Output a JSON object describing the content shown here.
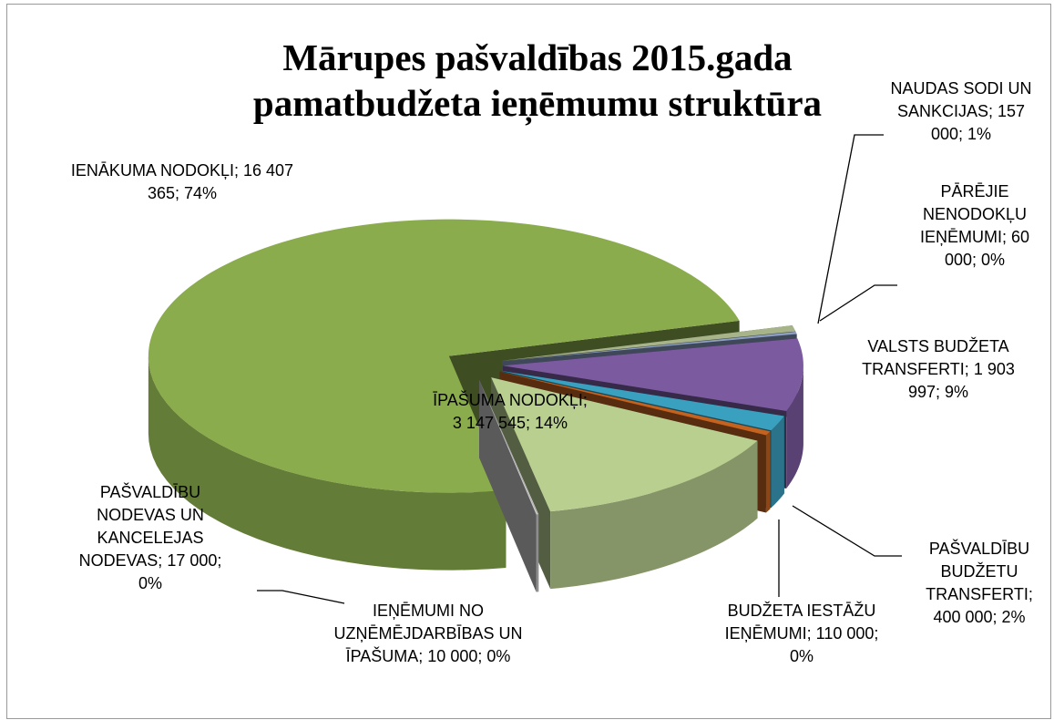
{
  "chart_data": {
    "type": "pie3d",
    "title": "Mārupes pašvaldības 2015.gada pamatbudžeta ieņēmumu struktūra",
    "label_separator": ";",
    "categories": [
      "IENĀKUMA NODOKĻI",
      "PAŠVALDĪBU NODEVAS UN KANCELEJAS NODEVAS",
      "IEŅĒMUMI NO UZŅĒMĒJDARBĪBAS UN ĪPAŠUMA",
      "ĪPAŠUMA NODOKĻI",
      "BUDŽETA IESTĀŽU IEŅĒMUMI",
      "PAŠVALDĪBU BUDŽETU TRANSFERTI",
      "VALSTS BUDŽETA TRANSFERTI",
      "PĀRĒJIE NENODOKĻU IEŅĒMUMI",
      "NAUDAS SODI UN SANKCIJAS"
    ],
    "values": [
      16407365,
      17000,
      10000,
      3147545,
      110000,
      400000,
      1903997,
      60000,
      157000
    ],
    "value_labels": [
      "16 407 365",
      "17 000",
      "10 000",
      "3 147 545",
      "110 000",
      "400 000",
      "1 903 997",
      "60 000",
      "157 000"
    ],
    "percentages": [
      74,
      0,
      0,
      14,
      0,
      2,
      9,
      0,
      1
    ],
    "percentage_labels": [
      "74%",
      "0%",
      "0%",
      "14%",
      "0%",
      "2%",
      "9%",
      "0%",
      "1%"
    ],
    "colors": [
      "#8aac4c",
      "#c9c9c9",
      "#d4d4d4",
      "#b9cf90",
      "#c4621f",
      "#3aa0c0",
      "#7b5aa0",
      "#8d9fc4",
      "#a7b48a"
    ]
  }
}
